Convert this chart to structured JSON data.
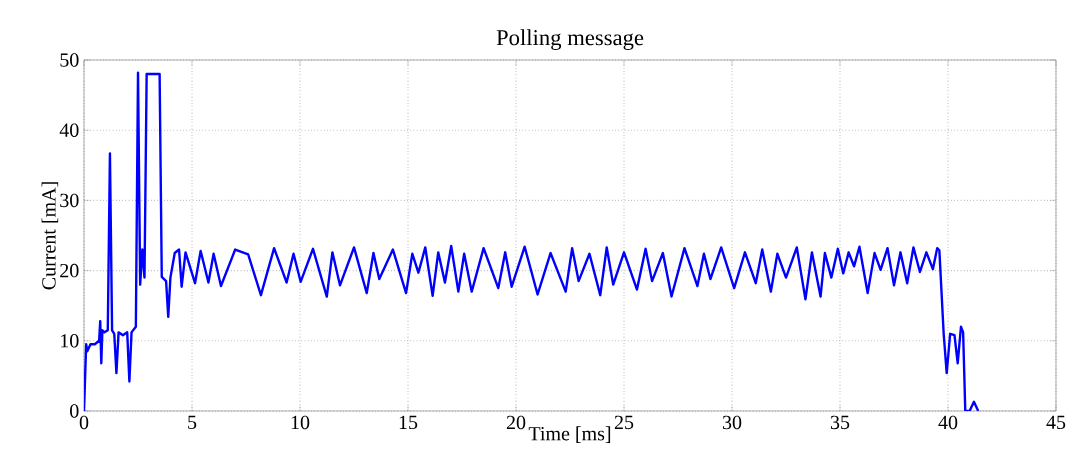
{
  "chart_data": {
    "type": "line",
    "title": "Polling message",
    "xlabel": "Time [ms]",
    "ylabel": "Current [mA]",
    "xlim": [
      0,
      45
    ],
    "ylim": [
      0,
      50
    ],
    "xticks": [
      0,
      5,
      10,
      15,
      20,
      25,
      30,
      35,
      40,
      45
    ],
    "yticks": [
      0,
      10,
      20,
      30,
      40,
      50
    ],
    "grid": true,
    "line_style": "solid",
    "series": [
      {
        "color": "#0000ff",
        "x": [
          0,
          0.1,
          0.15,
          0.3,
          0.5,
          0.7,
          0.75,
          0.8,
          0.85,
          0.95,
          1.1,
          1.2,
          1.3,
          1.4,
          1.5,
          1.6,
          1.8,
          2.0,
          2.1,
          2.2,
          2.4,
          2.5,
          2.6,
          2.7,
          2.8,
          2.9,
          3.5,
          3.6,
          3.8,
          3.9,
          4.0,
          4.2,
          4.4,
          4.52,
          4.7,
          5.14,
          5.4,
          5.76,
          6.0,
          6.34,
          7.0,
          7.6,
          8.19,
          8.8,
          9.38,
          9.7,
          10.03,
          10.6,
          11.24,
          11.5,
          11.85,
          12.5,
          13.09,
          13.4,
          13.67,
          14.3,
          14.91,
          15.2,
          15.48,
          15.8,
          16.14,
          16.4,
          16.71,
          17.0,
          17.33,
          17.6,
          17.95,
          18.5,
          19.18,
          19.5,
          19.8,
          20.4,
          21.0,
          21.6,
          22.3,
          22.6,
          22.9,
          23.4,
          23.9,
          24.2,
          24.5,
          25.0,
          25.6,
          26.0,
          26.3,
          26.8,
          27.2,
          27.8,
          28.4,
          28.7,
          29.0,
          29.5,
          30.1,
          30.6,
          31.1,
          31.4,
          31.8,
          32.1,
          32.5,
          33.0,
          33.4,
          33.7,
          34.1,
          34.3,
          34.6,
          34.9,
          35.15,
          35.4,
          35.65,
          35.9,
          36.28,
          36.6,
          36.88,
          37.2,
          37.5,
          37.8,
          38.11,
          38.4,
          38.7,
          39.0,
          39.3,
          39.5,
          39.6,
          39.8,
          39.94,
          40.1,
          40.3,
          40.45,
          40.6,
          40.7,
          40.8,
          41.0,
          41.2,
          41.4
        ],
        "values": [
          0,
          9.5,
          8.5,
          9.5,
          9.5,
          10,
          12.8,
          6.8,
          11.5,
          11.2,
          11.5,
          36.7,
          11.5,
          11,
          5.4,
          11.2,
          10.8,
          11.2,
          4.2,
          11.2,
          12,
          48.2,
          18,
          23,
          19,
          48,
          48,
          19.1,
          18.5,
          13.4,
          19,
          22.5,
          23,
          17.7,
          22.6,
          18.2,
          22.8,
          18.3,
          22.4,
          17.8,
          23,
          22.3,
          16.5,
          23.2,
          18.3,
          22.4,
          18.4,
          23.1,
          16.3,
          22.6,
          17.9,
          23.3,
          16.8,
          22.5,
          18.8,
          23,
          16.8,
          22.4,
          19.7,
          23.3,
          16.4,
          22.6,
          18.3,
          23.5,
          17,
          22.4,
          17,
          23.2,
          17.5,
          22.6,
          17.7,
          23.4,
          16.6,
          22.5,
          17,
          23.2,
          18.5,
          22.4,
          16.5,
          23.3,
          18,
          22.6,
          17.3,
          23.1,
          18.5,
          22.5,
          16.3,
          23.2,
          17.8,
          22.4,
          18.8,
          23.3,
          17.5,
          22.6,
          18.2,
          23,
          17,
          22.4,
          19,
          23.3,
          15.9,
          22.6,
          16.3,
          22.5,
          19,
          23.1,
          19.6,
          22.6,
          20.6,
          23.4,
          16.8,
          22.5,
          20.1,
          23.2,
          17.9,
          22.6,
          18.2,
          23.3,
          19.8,
          22.6,
          20.2,
          23.2,
          22.9,
          11,
          5.4,
          11,
          10.8,
          6.8,
          12,
          11.2,
          0,
          0,
          1.3,
          0
        ]
      }
    ]
  }
}
